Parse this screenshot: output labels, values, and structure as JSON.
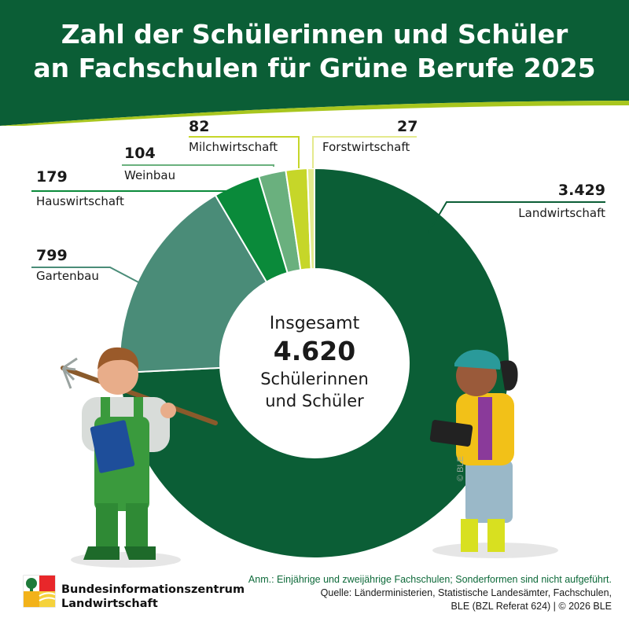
{
  "title": {
    "line1": "Zahl der Schülerinnen und Schüler",
    "line2": "an Fachschulen für Grüne Berufe 2025"
  },
  "center": {
    "line1": "Insgesamt",
    "total": "4.620",
    "line3": "Schülerinnen",
    "line4": "und Schüler"
  },
  "chart_data": {
    "type": "pie",
    "variant": "donut",
    "total": 4620,
    "slices": [
      {
        "label": "Landwirtschaft",
        "value": 3429,
        "display": "3.429",
        "color": "#0b5e36"
      },
      {
        "label": "Gartenbau",
        "value": 799,
        "display": "799",
        "color": "#4a8c78"
      },
      {
        "label": "Hauswirtschaft",
        "value": 179,
        "display": "179",
        "color": "#0a8a3a"
      },
      {
        "label": "Weinbau",
        "value": 104,
        "display": "104",
        "color": "#6ab07e"
      },
      {
        "label": "Milchwirtschaft",
        "value": 82,
        "display": "82",
        "color": "#c6d629"
      },
      {
        "label": "Forstwirtschaft",
        "value": 27,
        "display": "27",
        "color": "#e4e98d"
      }
    ]
  },
  "footer": {
    "note": "Anm.: Einjährige und zweijährige Fachschulen; Sonderformen sind nicht aufgeführt.",
    "source1": "Quelle: Länderministerien, Statistische Landesämter, Fachschulen,",
    "source2": "BLE (BZL Referat 624) | © 2026 BLE",
    "logo_line1": "Bundesinformationszentrum",
    "logo_line2": "Landwirtschaft",
    "copyright": "© BLE"
  },
  "colors": {
    "header_green": "#0b5e36",
    "accent_lime": "#a8c61e"
  }
}
